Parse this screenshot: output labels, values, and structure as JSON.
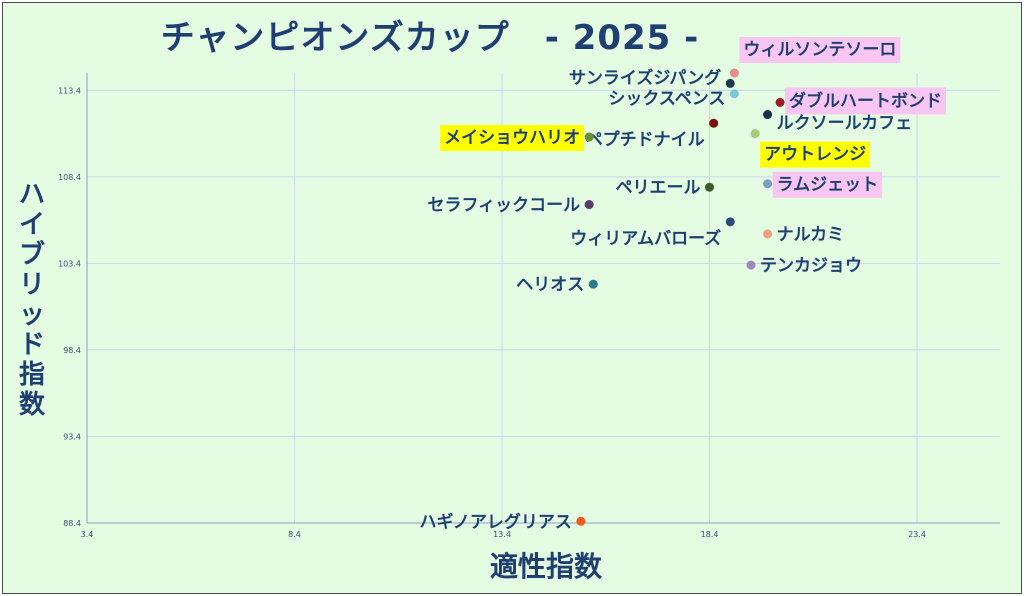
{
  "chart_data": {
    "type": "scatter",
    "title": "チャンピオンズカップ　- 2025 -",
    "xlabel": "適性指数",
    "ylabel": "ハイブリッド指数",
    "xlim": [
      3.4,
      25.4
    ],
    "ylim": [
      88.4,
      114.4
    ],
    "x_ticks": [
      "3.4",
      "8.4",
      "13.4",
      "18.4",
      "23.4"
    ],
    "y_ticks": [
      "113.4",
      "108.4",
      "103.4",
      "98.4",
      "93.4",
      "88.4"
    ],
    "grid": true,
    "points": [
      {
        "name": "ウィルソンテソーロ",
        "x": 19.0,
        "y": 114.4,
        "color": "#e88a8a",
        "highlight": "#f9c6f4"
      },
      {
        "name": "サンライズジパング",
        "x": 18.9,
        "y": 113.8,
        "color": "#1b3a52",
        "highlight": ""
      },
      {
        "name": "シックスペンス",
        "x": 19.0,
        "y": 113.2,
        "color": "#7ec8d8",
        "highlight": ""
      },
      {
        "name": "ダブルハートボンド",
        "x": 20.1,
        "y": 112.7,
        "color": "#9b1b2b",
        "highlight": "#f9c6f4"
      },
      {
        "name": "ルクソールカフェ",
        "x": 19.8,
        "y": 112.0,
        "color": "#1e2a50",
        "highlight": ""
      },
      {
        "name": "ペプチドナイル",
        "x": 18.5,
        "y": 111.5,
        "color": "#7a1010",
        "highlight": ""
      },
      {
        "name": "アウトレンジ",
        "x": 19.5,
        "y": 110.9,
        "color": "#a9c97a",
        "highlight": "#ffff00"
      },
      {
        "name": "メイショウハリオ",
        "x": 15.5,
        "y": 110.7,
        "color": "#6b8f35",
        "highlight": "#ffff00"
      },
      {
        "name": "ラムジェット",
        "x": 19.8,
        "y": 108.0,
        "color": "#7a9fc0",
        "highlight": "#f9c6f4"
      },
      {
        "name": "ペリエール",
        "x": 18.4,
        "y": 107.8,
        "color": "#3e5a2a",
        "highlight": ""
      },
      {
        "name": "セラフィックコール",
        "x": 15.5,
        "y": 106.8,
        "color": "#5a3a6a",
        "highlight": ""
      },
      {
        "name": "ウィリアムバローズ",
        "x": 18.9,
        "y": 105.8,
        "color": "#2a4a7a",
        "highlight": ""
      },
      {
        "name": "ナルカミ",
        "x": 19.8,
        "y": 105.1,
        "color": "#f0a07a",
        "highlight": ""
      },
      {
        "name": "テンカジョウ",
        "x": 19.4,
        "y": 103.3,
        "color": "#a08ab8",
        "highlight": ""
      },
      {
        "name": "ヘリオス",
        "x": 15.6,
        "y": 102.2,
        "color": "#2a7a8a",
        "highlight": ""
      },
      {
        "name": "ハギノアレグリアス",
        "x": 15.3,
        "y": 88.5,
        "color": "#f05a1a",
        "highlight": ""
      }
    ]
  }
}
